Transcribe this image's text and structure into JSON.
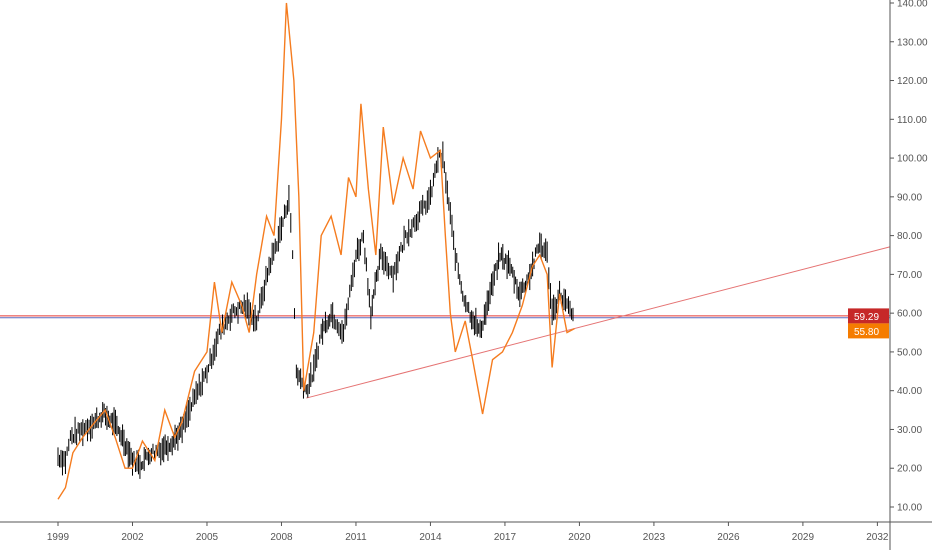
{
  "chart_data": {
    "type": "line",
    "title": "",
    "xlabel": "",
    "ylabel": "",
    "xlim": [
      1996.7,
      2033.2
    ],
    "ylim": [
      10,
      140
    ],
    "grid": false,
    "x_ticks": [
      "1999",
      "2002",
      "2005",
      "2008",
      "2011",
      "2014",
      "2017",
      "2020",
      "2023",
      "2026",
      "2029",
      "2032"
    ],
    "y_ticks": [
      "10.00",
      "20.00",
      "30.00",
      "40.00",
      "50.00",
      "60.00",
      "70.00",
      "80.00",
      "90.00",
      "100.00",
      "110.00",
      "120.00",
      "130.00",
      "140.00"
    ],
    "series": [
      {
        "style": "ohlc-bars",
        "color": "#000000",
        "x": [
          1999.0,
          1999.3,
          1999.5,
          2000.0,
          2000.5,
          2000.8,
          2001.2,
          2001.6,
          2002.0,
          2002.3,
          2002.7,
          2003.2,
          2003.6,
          2004.0,
          2004.5,
          2005.0,
          2005.5,
          2006.0,
          2006.5,
          2007.0,
          2007.5,
          2008.0,
          2008.3,
          2008.45,
          2008.6,
          2009.0,
          2009.3,
          2009.6,
          2010.0,
          2010.5,
          2011.0,
          2011.3,
          2011.6,
          2012.0,
          2012.5,
          2013.0,
          2013.5,
          2014.0,
          2014.3,
          2014.5,
          2014.8,
          2015.0,
          2015.3,
          2015.6,
          2016.0,
          2016.4,
          2016.8,
          2017.2,
          2017.6,
          2018.0,
          2018.4,
          2018.7,
          2018.9,
          2019.2,
          2019.5,
          2019.8
        ],
        "values": [
          23,
          22,
          28,
          30,
          32,
          34,
          32,
          28,
          22,
          21,
          24,
          25,
          27,
          30,
          38,
          45,
          55,
          60,
          62,
          58,
          72,
          82,
          90,
          75,
          45,
          40,
          45,
          55,
          60,
          55,
          75,
          80,
          60,
          75,
          70,
          80,
          85,
          90,
          100,
          100,
          85,
          75,
          65,
          60,
          55,
          65,
          75,
          72,
          65,
          70,
          78,
          75,
          60,
          65,
          62,
          58
        ]
      },
      {
        "style": "line",
        "color": "#f57c1f",
        "x": [
          1999.0,
          1999.3,
          1999.6,
          2000.0,
          2000.5,
          2000.9,
          2001.3,
          2001.7,
          2002.0,
          2002.4,
          2002.9,
          2003.3,
          2003.7,
          2004.0,
          2004.5,
          2005.0,
          2005.3,
          2005.6,
          2006.0,
          2006.4,
          2006.7,
          2007.0,
          2007.4,
          2007.7,
          2008.0,
          2008.2,
          2008.5,
          2008.7,
          2008.9,
          2009.3,
          2009.6,
          2010.0,
          2010.4,
          2010.7,
          2011.0,
          2011.2,
          2011.5,
          2011.8,
          2012.1,
          2012.5,
          2012.9,
          2013.3,
          2013.6,
          2014.0,
          2014.4,
          2014.6,
          2014.8,
          2015.0,
          2015.4,
          2015.7,
          2016.1,
          2016.5,
          2016.9,
          2017.3,
          2017.7,
          2018.1,
          2018.4,
          2018.7,
          2018.9,
          2019.2,
          2019.5,
          2019.8
        ],
        "values": [
          12,
          15,
          24,
          28,
          32,
          35,
          28,
          20,
          20,
          27,
          22,
          35,
          28,
          32,
          45,
          50,
          68,
          55,
          68,
          62,
          55,
          70,
          85,
          80,
          110,
          140,
          120,
          90,
          40,
          55,
          80,
          85,
          75,
          95,
          90,
          114,
          92,
          75,
          108,
          88,
          100,
          92,
          107,
          100,
          102,
          80,
          60,
          50,
          58,
          48,
          34,
          48,
          50,
          55,
          62,
          72,
          75,
          70,
          46,
          65,
          55,
          56
        ]
      }
    ],
    "annotations": {
      "trendline": {
        "color": "#e57373",
        "from": [
          2009.0,
          38.1
        ],
        "to": [
          2032.5,
          77.1
        ]
      },
      "horizontal_lines": [
        {
          "value": 59.29,
          "color": "#e53935"
        },
        {
          "value": 58.8,
          "color": "#5c6bc0"
        }
      ],
      "price_labels": [
        {
          "text": "59.29",
          "value": 59.29,
          "color": "#c62828"
        },
        {
          "text": "55.80",
          "value": 55.8,
          "color": "#f57c00"
        }
      ]
    }
  }
}
